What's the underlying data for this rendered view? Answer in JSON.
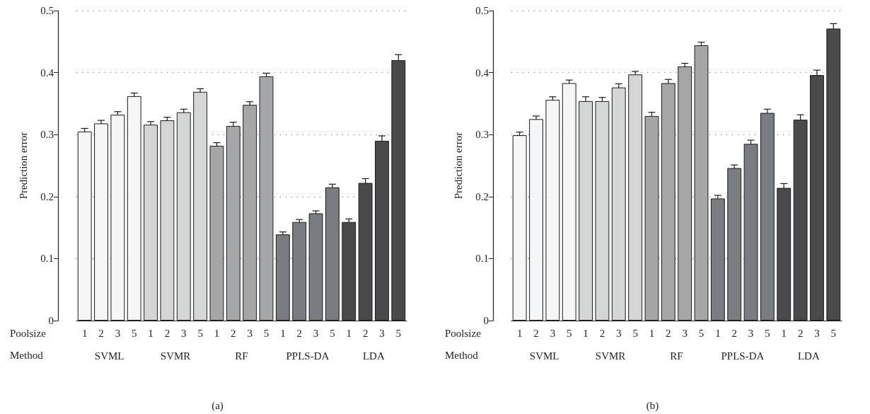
{
  "chart_data": [
    {
      "type": "bar",
      "title": "(a)",
      "xlabel": "Poolsize",
      "ylabel": "Prediction error",
      "annotations": [
        "Method",
        "SVML",
        "SVMR",
        "RF",
        "PPLS-DA",
        "LDA"
      ],
      "categories": [
        "1",
        "2",
        "3",
        "5",
        "1",
        "2",
        "3",
        "5",
        "1",
        "2",
        "3",
        "5",
        "1",
        "2",
        "3",
        "5",
        "1",
        "2",
        "3",
        "5"
      ],
      "values": [
        0.305,
        0.318,
        0.332,
        0.362,
        0.316,
        0.323,
        0.336,
        0.369,
        0.282,
        0.314,
        0.348,
        0.394,
        0.139,
        0.159,
        0.173,
        0.215,
        0.159,
        0.222,
        0.29,
        0.42
      ],
      "errors": [
        0.005,
        0.005,
        0.005,
        0.005,
        0.005,
        0.005,
        0.005,
        0.005,
        0.005,
        0.006,
        0.005,
        0.005,
        0.004,
        0.004,
        0.004,
        0.005,
        0.005,
        0.007,
        0.008,
        0.009
      ],
      "colors": [
        "#f5f6f8",
        "#f5f6f8",
        "#f5f6f8",
        "#f5f6f8",
        "#d4d5d5",
        "#d4d5d5",
        "#d4d5d5",
        "#d4d5d5",
        "#a5a6a8",
        "#a5a6a8",
        "#a5a6a8",
        "#a5a6a8",
        "#7a7d80",
        "#7a7d80",
        "#7a7d80",
        "#7a7d80",
        "#4a4a4c",
        "#4a4a4c",
        "#4a4a4c",
        "#4a4a4c"
      ],
      "ylim": [
        0,
        0.5
      ],
      "yticks": [
        0,
        0.1,
        0.2,
        0.3,
        0.4,
        0.5
      ],
      "grid": "y"
    },
    {
      "type": "bar",
      "title": "(b)",
      "xlabel": "Poolsize",
      "ylabel": "Prediction error",
      "annotations": [
        "Method",
        "SVML",
        "SVMR",
        "RF",
        "PPLS-DA",
        "LDA"
      ],
      "categories": [
        "1",
        "2",
        "3",
        "5",
        "1",
        "2",
        "3",
        "5",
        "1",
        "2",
        "3",
        "5",
        "1",
        "2",
        "3",
        "5",
        "1",
        "2",
        "3",
        "5"
      ],
      "values": [
        0.299,
        0.325,
        0.356,
        0.383,
        0.354,
        0.354,
        0.376,
        0.397,
        0.33,
        0.383,
        0.41,
        0.444,
        0.197,
        0.246,
        0.285,
        0.335,
        0.214,
        0.324,
        0.396,
        0.471
      ],
      "errors": [
        0.005,
        0.005,
        0.005,
        0.005,
        0.007,
        0.006,
        0.006,
        0.005,
        0.006,
        0.006,
        0.005,
        0.005,
        0.005,
        0.005,
        0.006,
        0.006,
        0.007,
        0.008,
        0.008,
        0.008
      ],
      "colors": [
        "#f5f6f8",
        "#f5f6f8",
        "#f5f6f8",
        "#f5f6f8",
        "#d4d5d5",
        "#d4d5d5",
        "#d4d5d5",
        "#d4d5d5",
        "#a5a6a8",
        "#a5a6a8",
        "#a5a6a8",
        "#a5a6a8",
        "#7a7d80",
        "#7a7d80",
        "#7a7d80",
        "#7a7d80",
        "#4a4a4c",
        "#4a4a4c",
        "#4a4a4c",
        "#4a4a4c"
      ],
      "ylim": [
        0,
        0.5
      ],
      "yticks": [
        0,
        0.1,
        0.2,
        0.3,
        0.4,
        0.5
      ],
      "grid": "y"
    }
  ]
}
